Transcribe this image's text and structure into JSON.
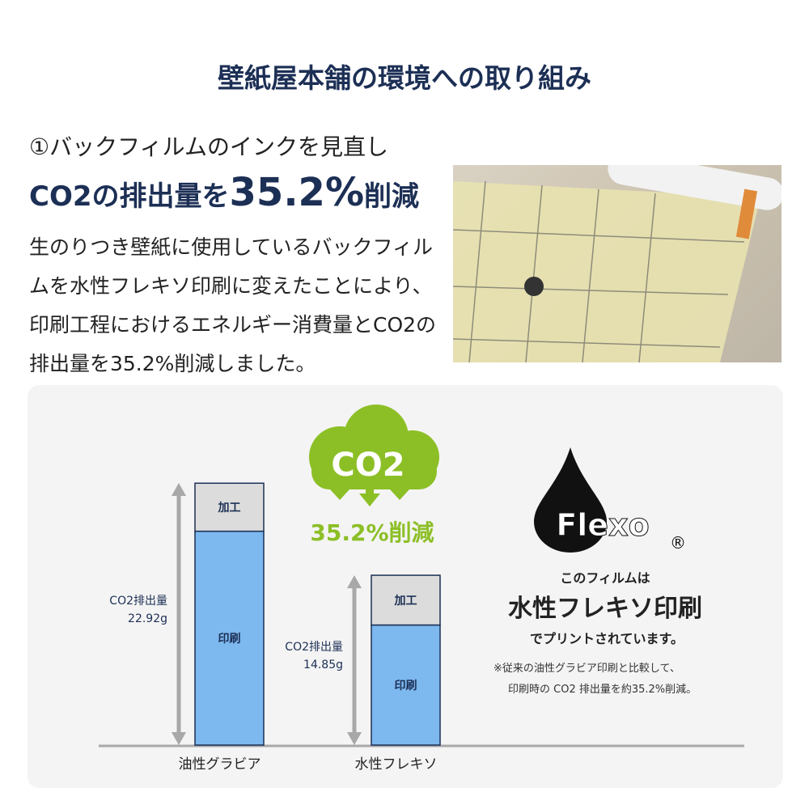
{
  "title": "壁紙屋本舗の環境への取り組み",
  "subtitle": "①バックフィルムのインクを見直し",
  "headline": {
    "pre": "CO2の排出量を",
    "big": "35.2%",
    "post": "削減"
  },
  "body": "生のりつき壁紙に使用しているバックフィルムを水性フレキソ印刷に変えたことにより、印刷工程におけるエネルギー消費量とCO2の排出量を35.2%削減しました。",
  "cloud": {
    "label": "CO2",
    "reduction": "35.2%削減"
  },
  "colors": {
    "navy": "#1c2f55",
    "print": "#7db8ef",
    "process": "#dcdcdc",
    "green": "#8cbf26",
    "axis": "#a8a8a8"
  },
  "chart_data": {
    "type": "bar",
    "stacked": true,
    "categories": [
      "油性グラビア",
      "水性フレキソ"
    ],
    "series": [
      {
        "name": "印刷",
        "values": [
          18.7,
          10.5
        ]
      },
      {
        "name": "加工",
        "values": [
          4.2,
          4.35
        ]
      }
    ],
    "totals": [
      22.92,
      14.85
    ],
    "total_labels": [
      [
        "CO2排出量",
        "22.92g"
      ],
      [
        "CO2排出量",
        "14.85g"
      ]
    ],
    "ylim": [
      0,
      22.92
    ]
  },
  "flexo": {
    "logo": "Flexo",
    "reg": "®",
    "line1": "このフィルムは",
    "line2": "水性フレキソ印刷",
    "line3": "でプリントされています。",
    "note1": "※従来の油性グラビア印刷と比較して、",
    "note2": "印刷時の CO2 排出量を約35.2%削減。"
  }
}
